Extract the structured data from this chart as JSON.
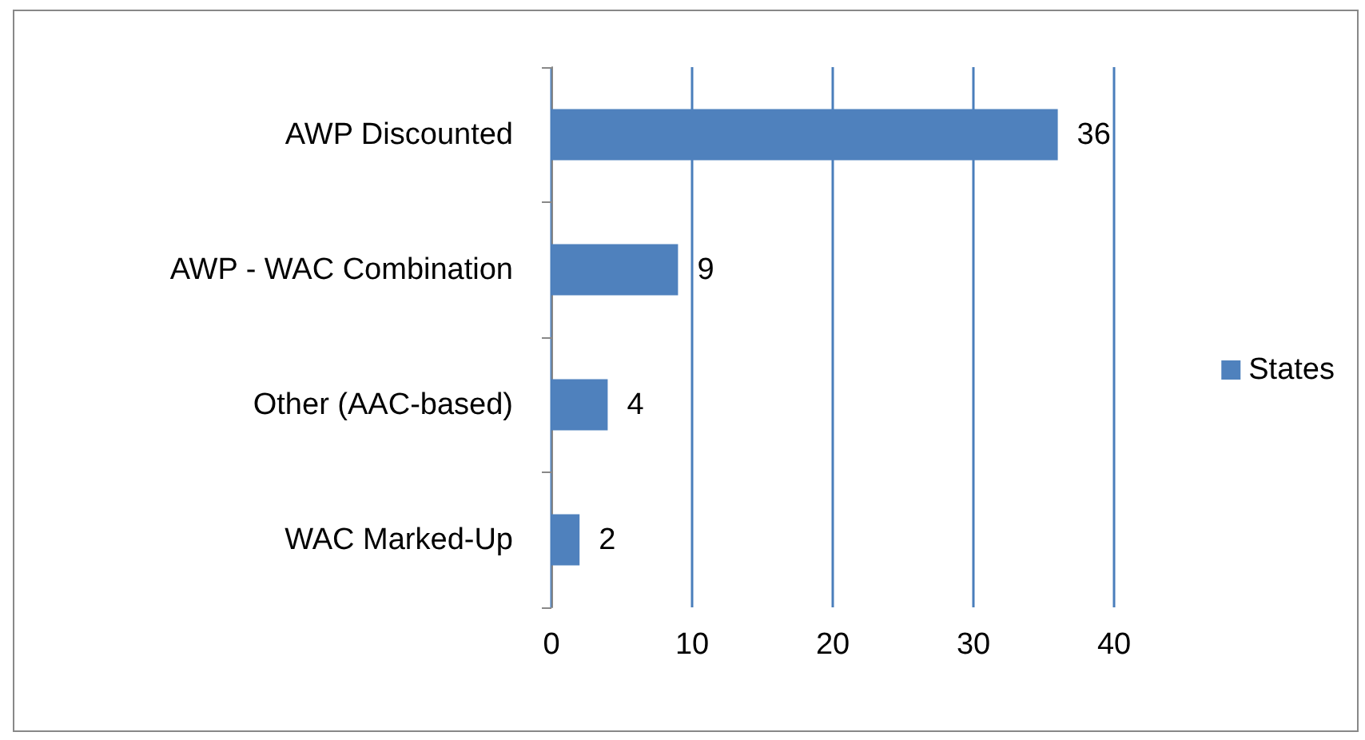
{
  "chart_data": {
    "type": "bar",
    "orientation": "horizontal",
    "categories": [
      "AWP Discounted",
      "AWP - WAC Combination",
      "Other (AAC-based)",
      "WAC Marked-Up"
    ],
    "series": [
      {
        "name": "States",
        "color": "#4f81bd",
        "values": [
          36,
          9,
          4,
          2
        ]
      }
    ],
    "xlim": [
      0,
      40
    ],
    "xticks": [
      0,
      10,
      20,
      30,
      40
    ],
    "grid": "x",
    "legend": "right",
    "data_labels": true
  }
}
